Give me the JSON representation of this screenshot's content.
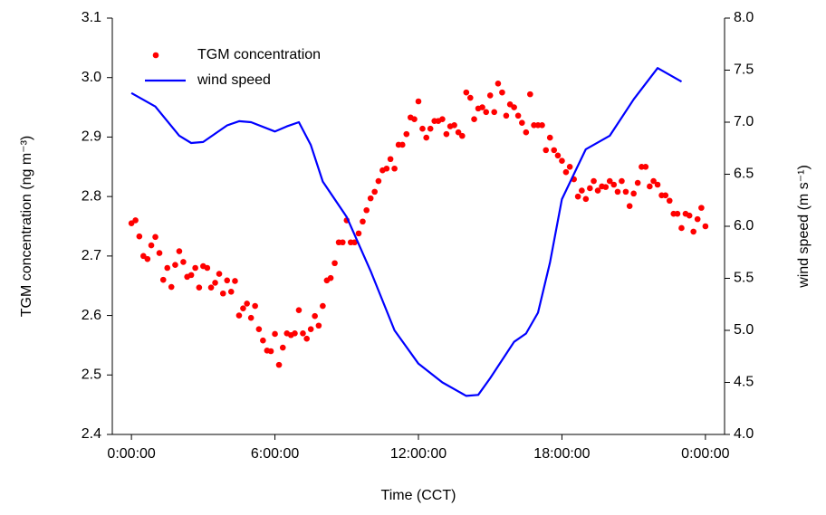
{
  "chart_data": {
    "type": "line",
    "xlabel": "Time (CCT)",
    "ylabel": "TGM concentration (ng m⁻³)",
    "y2label": "wind speed (m s⁻¹)",
    "xlim": [
      -0.8,
      24.8
    ],
    "xticks": [
      {
        "value": 0,
        "label": "0:00:00"
      },
      {
        "value": 6,
        "label": "6:00:00"
      },
      {
        "value": 12,
        "label": "12:00:00"
      },
      {
        "value": 18,
        "label": "18:00:00"
      },
      {
        "value": 24,
        "label": "0:00:00"
      }
    ],
    "ylim": [
      2.4,
      3.1
    ],
    "yticks": [
      2.4,
      2.5,
      2.6,
      2.7,
      2.8,
      2.9,
      {
        "value": 3.0,
        "label": "3.0"
      },
      3.1
    ],
    "y2lim": [
      4.0,
      8.0
    ],
    "y2ticks": [
      {
        "value": 4.0,
        "label": "4.0"
      },
      4.5,
      {
        "value": 5.0,
        "label": "5.0"
      },
      5.5,
      {
        "value": 6.0,
        "label": "6.0"
      },
      6.5,
      {
        "value": 7.0,
        "label": "7.0"
      },
      7.5,
      {
        "value": 8.0,
        "label": "8.0"
      }
    ],
    "grid": false,
    "legend": "upper left",
    "series": [
      {
        "name": "TGM concentration",
        "type": "scatter",
        "color": "#ff0000",
        "x": [
          0,
          0.17,
          0.33,
          0.5,
          0.67,
          0.83,
          1,
          1.17,
          1.33,
          1.5,
          1.67,
          1.83,
          2,
          2.17,
          2.33,
          2.5,
          2.67,
          2.83,
          3,
          3.17,
          3.33,
          3.5,
          3.67,
          3.83,
          4,
          4.17,
          4.33,
          4.5,
          4.67,
          4.83,
          5,
          5.17,
          5.33,
          5.5,
          5.67,
          5.83,
          6,
          6.17,
          6.33,
          6.5,
          6.67,
          6.83,
          7,
          7.17,
          7.33,
          7.5,
          7.67,
          7.83,
          8,
          8.17,
          8.33,
          8.5,
          8.67,
          8.83,
          9,
          9.17,
          9.33,
          9.5,
          9.67,
          9.83,
          10,
          10.17,
          10.33,
          10.5,
          10.67,
          10.83,
          11,
          11.17,
          11.33,
          11.5,
          11.67,
          11.83,
          12,
          12.17,
          12.33,
          12.5,
          12.67,
          12.83,
          13,
          13.17,
          13.33,
          13.5,
          13.67,
          13.83,
          14,
          14.17,
          14.33,
          14.5,
          14.67,
          14.83,
          15,
          15.17,
          15.33,
          15.5,
          15.67,
          15.83,
          16,
          16.17,
          16.33,
          16.5,
          16.67,
          16.83,
          17,
          17.17,
          17.33,
          17.5,
          17.67,
          17.83,
          18,
          18.17,
          18.33,
          18.5,
          18.67,
          18.83,
          19,
          19.17,
          19.33,
          19.5,
          19.67,
          19.83,
          20,
          20.17,
          20.33,
          20.5,
          20.67,
          20.83,
          21,
          21.17,
          21.33,
          21.5,
          21.67,
          21.83,
          22,
          22.17,
          22.33,
          22.5,
          22.67,
          22.83,
          23,
          23.17,
          23.33,
          23.5,
          23.67,
          23.83,
          24
        ],
        "values": [
          2.755,
          2.76,
          2.733,
          2.7,
          2.695,
          2.718,
          2.732,
          2.705,
          2.66,
          2.68,
          2.648,
          2.685,
          2.708,
          2.69,
          2.665,
          2.668,
          2.68,
          2.647,
          2.683,
          2.68,
          2.647,
          2.655,
          2.67,
          2.637,
          2.659,
          2.64,
          2.658,
          2.6,
          2.612,
          2.62,
          2.596,
          2.616,
          2.577,
          2.558,
          2.541,
          2.54,
          2.569,
          2.517,
          2.546,
          2.57,
          2.567,
          2.57,
          2.609,
          2.57,
          2.561,
          2.577,
          2.599,
          2.583,
          2.616,
          2.659,
          2.663,
          2.688,
          2.723,
          2.723,
          2.76,
          2.723,
          2.723,
          2.738,
          2.758,
          2.777,
          2.797,
          2.808,
          2.826,
          2.844,
          2.847,
          2.863,
          2.847,
          2.887,
          2.887,
          2.905,
          2.933,
          2.93,
          2.96,
          2.914,
          2.899,
          2.914,
          2.927,
          2.927,
          2.93,
          2.905,
          2.918,
          2.92,
          2.908,
          2.902,
          2.975,
          2.966,
          2.93,
          2.948,
          2.95,
          2.942,
          2.97,
          2.942,
          2.99,
          2.975,
          2.936,
          2.955,
          2.95,
          2.936,
          2.924,
          2.908,
          2.972,
          2.92,
          2.92,
          2.92,
          2.878,
          2.899,
          2.878,
          2.869,
          2.86,
          2.841,
          2.85,
          2.829,
          2.8,
          2.81,
          2.796,
          2.814,
          2.826,
          2.81,
          2.817,
          2.816,
          2.826,
          2.82,
          2.808,
          2.826,
          2.808,
          2.784,
          2.805,
          2.823,
          2.85,
          2.85,
          2.817,
          2.826,
          2.82,
          2.802,
          2.802,
          2.793,
          2.771,
          2.771,
          2.747,
          2.771,
          2.768,
          2.741,
          2.762,
          2.781,
          2.75
        ]
      },
      {
        "name": "wind speed",
        "type": "line",
        "color": "#0000ff",
        "axis": "y2",
        "x": [
          0,
          1,
          2,
          2.5,
          3,
          4,
          4.5,
          5,
          6,
          6.5,
          7,
          7.5,
          8,
          9,
          10,
          11,
          12,
          13,
          14,
          14.5,
          15,
          16,
          16.5,
          17,
          17.5,
          18,
          19,
          20,
          21,
          22,
          23
        ],
        "values": [
          7.28,
          7.15,
          6.87,
          6.8,
          6.81,
          6.97,
          7.01,
          7.0,
          6.91,
          6.96,
          7.0,
          6.78,
          6.43,
          6.09,
          5.57,
          5.0,
          4.68,
          4.5,
          4.37,
          4.38,
          4.54,
          4.89,
          4.97,
          5.17,
          5.65,
          6.26,
          6.74,
          6.87,
          7.22,
          7.52,
          7.39
        ]
      }
    ]
  }
}
